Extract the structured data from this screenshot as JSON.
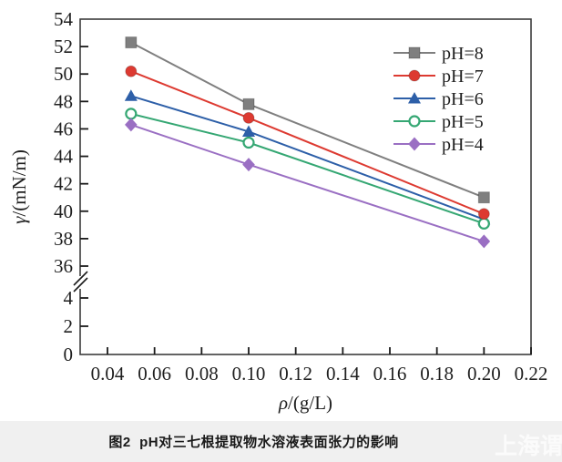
{
  "figure": {
    "caption": "图2  pH对三七根提取物水溶液表面张力的影响",
    "watermark": "上海谓载"
  },
  "chart_data": {
    "type": "line",
    "x": [
      0.05,
      0.1,
      0.2
    ],
    "series": [
      {
        "name": "pH=8",
        "values": [
          52.3,
          47.8,
          41.0
        ],
        "color": "#7f7f7f",
        "marker": "square"
      },
      {
        "name": "pH=7",
        "values": [
          50.2,
          46.8,
          39.8
        ],
        "color": "#dd3a31",
        "marker": "circle"
      },
      {
        "name": "pH=6",
        "values": [
          48.4,
          45.8,
          39.4
        ],
        "color": "#2d5fa8",
        "marker": "triangle"
      },
      {
        "name": "pH=5",
        "values": [
          47.1,
          45.0,
          39.1
        ],
        "color": "#35a773",
        "marker": "circle-open"
      },
      {
        "name": "pH=4",
        "values": [
          46.3,
          43.4,
          37.8
        ],
        "color": "#9a6fc3",
        "marker": "diamond"
      }
    ],
    "xlabel": "ρ/(g/L)",
    "ylabel": "γ/(mN/m)",
    "x_axis": {
      "tick_labels": [
        "0.04",
        "0.06",
        "0.08",
        "0.10",
        "0.12",
        "0.14",
        "0.16",
        "0.18",
        "0.20",
        "0.22"
      ],
      "range": [
        0.04,
        0.22
      ]
    },
    "y_axis": {
      "upper_ticks": [
        54,
        52,
        50,
        48,
        46,
        44,
        42,
        40,
        38,
        36
      ],
      "lower_ticks": [
        4,
        2,
        0
      ],
      "upper_range": [
        36,
        54
      ],
      "lower_range": [
        0,
        4
      ],
      "axis_break": true
    },
    "legend": {
      "position": "top-right",
      "entries": [
        "pH=8",
        "pH=7",
        "pH=6",
        "pH=5",
        "pH=4"
      ]
    },
    "grid": false,
    "frame_color": "#3c3c3c",
    "tick_color": "#1a1a1a"
  }
}
